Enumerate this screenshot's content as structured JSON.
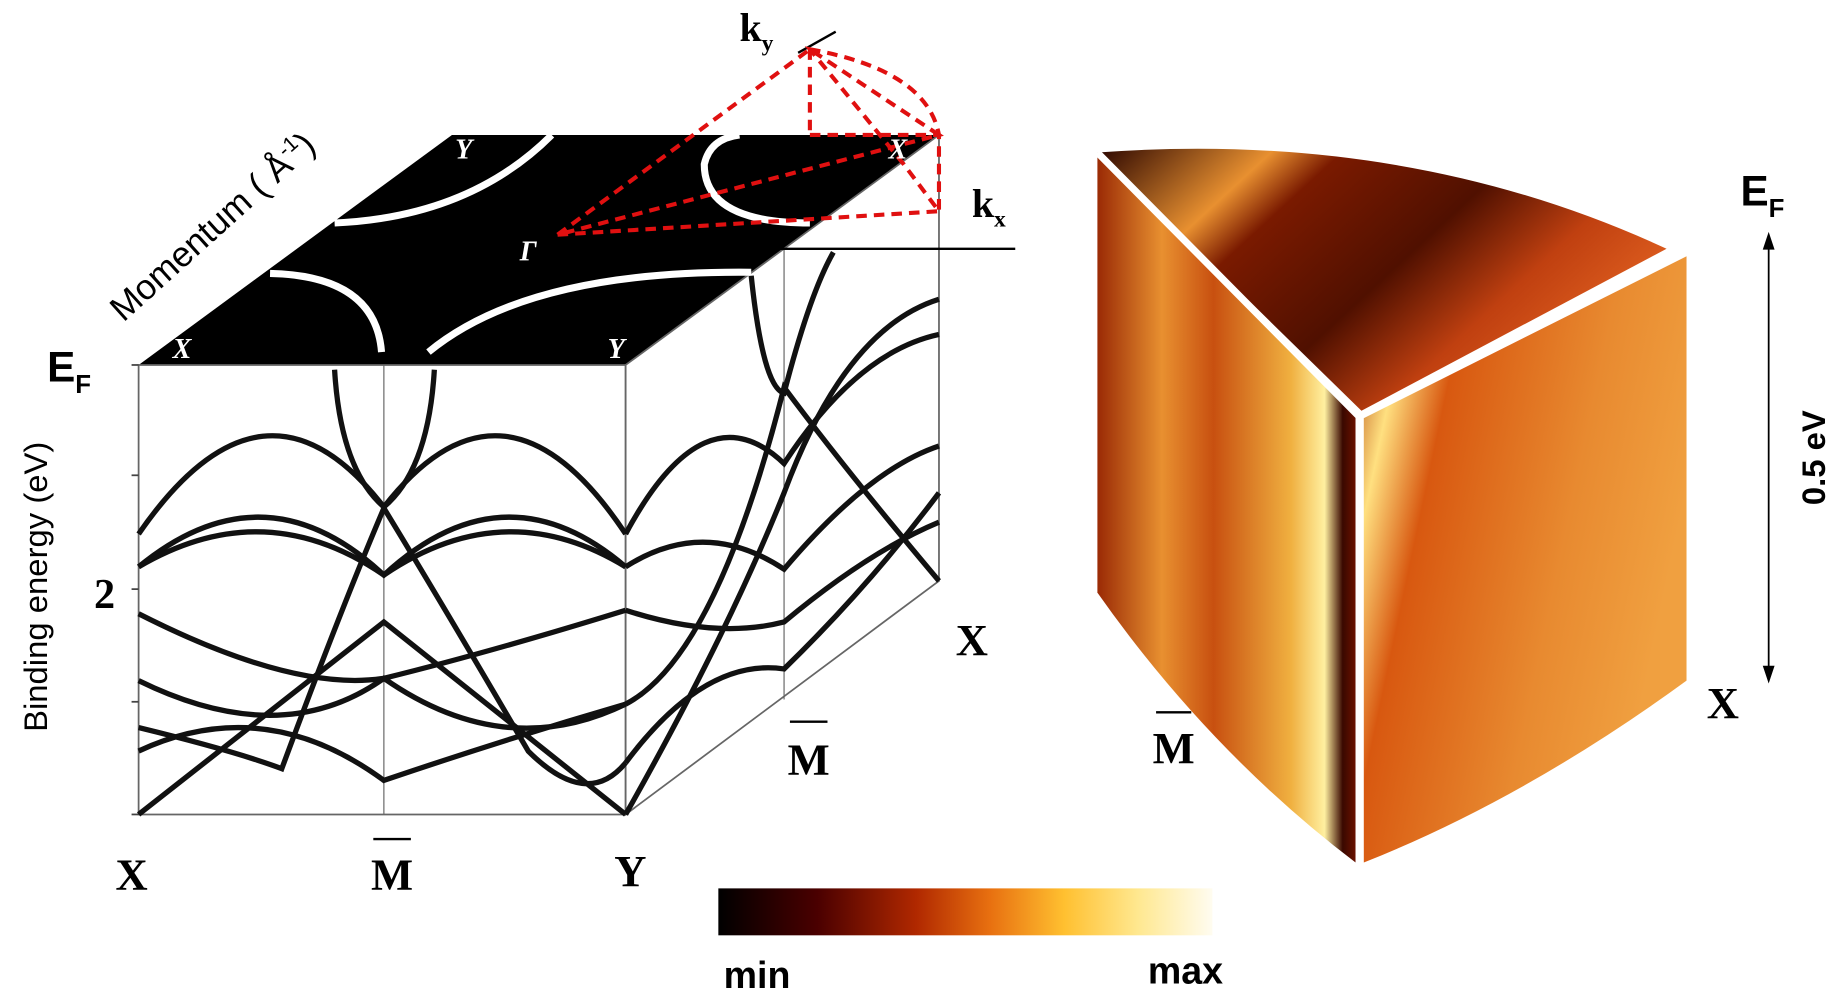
{
  "left_panel": {
    "y_axis_label": "Binding energy (eV)",
    "fermi_label": {
      "main": "E",
      "sub": "F"
    },
    "y_tick": "2",
    "momentum_label": {
      "main": "Momentum ( Å",
      "sup": "-1",
      "end": ")"
    },
    "x_labels": [
      "X",
      "M",
      "Y"
    ],
    "side_labels": [
      "M",
      "X"
    ],
    "top_face_labels": [
      "X",
      "Y",
      "Y",
      "X",
      "Γ"
    ],
    "kx": {
      "main": "k",
      "sub": "x"
    },
    "ky": {
      "main": "k",
      "sub": "y"
    }
  },
  "right_panel": {
    "fermi_label": {
      "main": "E",
      "sub": "F"
    },
    "energy_scale": "0.5 eV",
    "labels": [
      "M",
      "X"
    ]
  },
  "colorbar": {
    "min_label": "min",
    "max_label": "max"
  }
}
